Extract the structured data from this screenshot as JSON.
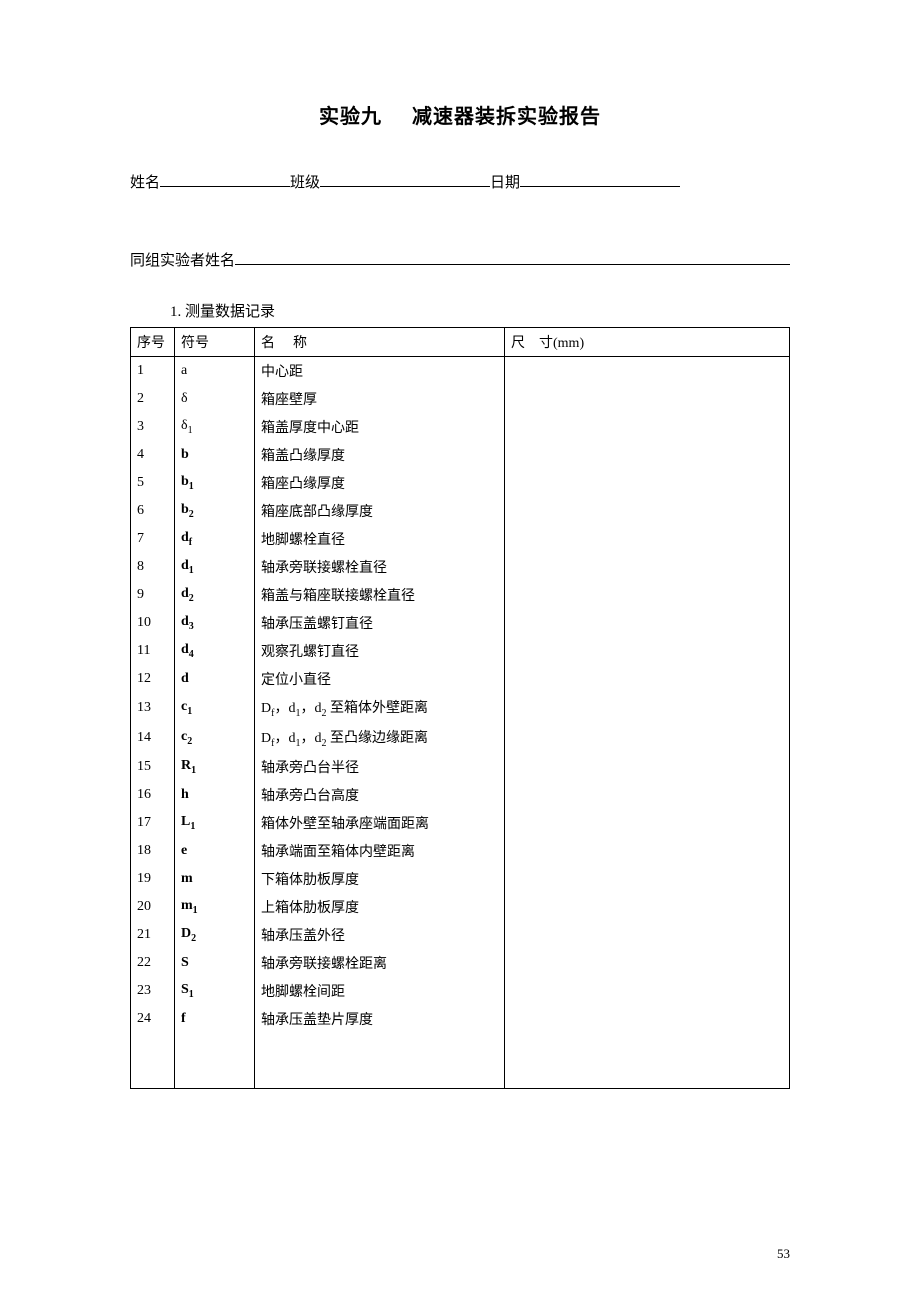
{
  "title_prefix": "实验九",
  "title_main": "减速器装拆实验报告",
  "labels": {
    "name": "姓名",
    "class": "班级",
    "date": "日期",
    "group": "同组实验者姓名"
  },
  "section": {
    "number": "1.",
    "title": "测量数据记录"
  },
  "table": {
    "headers": {
      "seq": "序号",
      "symbol": "符号",
      "name_prefix": "名",
      "name_suffix": "称",
      "dim_prefix": "尺",
      "dim_suffix": "寸(mm)"
    },
    "rows": [
      {
        "seq": "1",
        "symbol_html": "a",
        "bold": false,
        "name": "中心距"
      },
      {
        "seq": "2",
        "symbol_html": "δ",
        "bold": false,
        "name": "箱座壁厚"
      },
      {
        "seq": "3",
        "symbol_html": "δ<span class=\"sub\">1</span>",
        "bold": false,
        "name": "箱盖厚度中心距"
      },
      {
        "seq": "4",
        "symbol_html": "b",
        "bold": true,
        "name": "箱盖凸缘厚度"
      },
      {
        "seq": "5",
        "symbol_html": "b<span class=\"sub\">1</span>",
        "bold": true,
        "name": "箱座凸缘厚度"
      },
      {
        "seq": "6",
        "symbol_html": "b<span class=\"sub\">2</span>",
        "bold": true,
        "name": "箱座底部凸缘厚度"
      },
      {
        "seq": "7",
        "symbol_html": "d<span class=\"sub\">f</span>",
        "bold": true,
        "name": "地脚螺栓直径"
      },
      {
        "seq": "8",
        "symbol_html": "d<span class=\"sub\">1</span>",
        "bold": true,
        "name": "轴承旁联接螺栓直径"
      },
      {
        "seq": "9",
        "symbol_html": "d<span class=\"sub\">2</span>",
        "bold": true,
        "name": "箱盖与箱座联接螺栓直径"
      },
      {
        "seq": "10",
        "symbol_html": "d<span class=\"sub\">3</span>",
        "bold": true,
        "name": "轴承压盖螺钉直径"
      },
      {
        "seq": "11",
        "symbol_html": "d<span class=\"sub\">4</span>",
        "bold": true,
        "name": "观察孔螺钉直径"
      },
      {
        "seq": "12",
        "symbol_html": "d",
        "bold": true,
        "name": "定位小直径"
      },
      {
        "seq": "13",
        "symbol_html": "c<span class=\"sub\">1</span>",
        "bold": true,
        "name": "D<span class=\"sub\">f</span>，d<span class=\"sub\">1</span>，d<span class=\"sub\">2</span> 至箱体外壁距离"
      },
      {
        "seq": "14",
        "symbol_html": "c<span class=\"sub\">2</span>",
        "bold": true,
        "name": "D<span class=\"sub\">f</span>，d<span class=\"sub\">1</span>，d<span class=\"sub\">2</span> 至凸缘边缘距离"
      },
      {
        "seq": "15",
        "symbol_html": "R<span class=\"sub\">1</span>",
        "bold": true,
        "name": "轴承旁凸台半径"
      },
      {
        "seq": "16",
        "symbol_html": "h",
        "bold": true,
        "name": "轴承旁凸台高度"
      },
      {
        "seq": "17",
        "symbol_html": "L<span class=\"sub\">1</span>",
        "bold": true,
        "name": "箱体外壁至轴承座端面距离"
      },
      {
        "seq": "18",
        "symbol_html": "e",
        "bold": true,
        "name": "轴承端面至箱体内壁距离"
      },
      {
        "seq": "19",
        "symbol_html": "m",
        "bold": true,
        "name": "下箱体肋板厚度"
      },
      {
        "seq": "20",
        "symbol_html": "m<span class=\"sub\">1</span>",
        "bold": true,
        "name": "上箱体肋板厚度"
      },
      {
        "seq": "21",
        "symbol_html": "D<span class=\"sub\">2</span>",
        "bold": true,
        "name": "轴承压盖外径"
      },
      {
        "seq": "22",
        "symbol_html": "S",
        "bold": true,
        "name": "轴承旁联接螺栓距离"
      },
      {
        "seq": "23",
        "symbol_html": "S<span class=\"sub\">1</span>",
        "bold": true,
        "name": "地脚螺栓间距"
      },
      {
        "seq": "24",
        "symbol_html": "f",
        "bold": true,
        "name": "轴承压盖垫片厚度"
      }
    ]
  },
  "page_number": "53"
}
